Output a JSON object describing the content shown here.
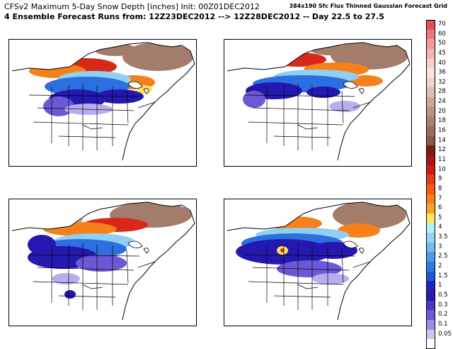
{
  "header": {
    "title": "CFSv2 Maximum 5-Day Snow Depth [inches] Init: 00Z01DEC2012",
    "subtitle": "4 Ensemble Forecast Runs from: 12Z23DEC2012 --> 12Z28DEC2012 -- Day 22.5 to 27.5",
    "grid_note": "384x190 Sfc Flux Thinned Gaussian Forecast Grid"
  },
  "legend": {
    "items": [
      {
        "label": "70",
        "color": "#e44e4e"
      },
      {
        "label": "60",
        "color": "#ef7777"
      },
      {
        "label": "50",
        "color": "#f29a9a"
      },
      {
        "label": "45",
        "color": "#f4b4b4"
      },
      {
        "label": "40",
        "color": "#f7cdcd"
      },
      {
        "label": "36",
        "color": "#f7e6e0"
      },
      {
        "label": "32",
        "color": "#e9d6cf"
      },
      {
        "label": "28",
        "color": "#dcc0b5"
      },
      {
        "label": "24",
        "color": "#cda798"
      },
      {
        "label": "20",
        "color": "#bd9282"
      },
      {
        "label": "18",
        "color": "#ad7f6e"
      },
      {
        "label": "16",
        "color": "#9c6c5b"
      },
      {
        "label": "14",
        "color": "#8a5848"
      },
      {
        "label": "12",
        "color": "#7a1b14"
      },
      {
        "label": "11",
        "color": "#a61614"
      },
      {
        "label": "10",
        "color": "#cd1a16"
      },
      {
        "label": "9",
        "color": "#e43a18"
      },
      {
        "label": "8",
        "color": "#f25d16"
      },
      {
        "label": "7",
        "color": "#f98016"
      },
      {
        "label": "6",
        "color": "#fba326"
      },
      {
        "label": "5",
        "color": "#ffe65a"
      },
      {
        "label": "4",
        "color": "#b5f0fa"
      },
      {
        "label": "3.5",
        "color": "#92d6f6"
      },
      {
        "label": "3",
        "color": "#72bcf1"
      },
      {
        "label": "2.5",
        "color": "#4b9aea"
      },
      {
        "label": "2",
        "color": "#2d78e1"
      },
      {
        "label": "1.5",
        "color": "#1d56d6"
      },
      {
        "label": "1",
        "color": "#1a22c8"
      },
      {
        "label": "0.5",
        "color": "#2b18a6"
      },
      {
        "label": "0.3",
        "color": "#4a38c6"
      },
      {
        "label": "0.2",
        "color": "#6a5cd6"
      },
      {
        "label": "0.1",
        "color": "#9a8ee6"
      },
      {
        "label": "0.05",
        "color": "#cdc6f4"
      },
      {
        "label": "",
        "color": "#ffffff"
      }
    ]
  },
  "colors": {
    "ocean": "#ffffff",
    "deep_snow": "#a47c6c",
    "light_deep": "#c9a697",
    "red": "#d8281a",
    "orange": "#f7801a",
    "yellow": "#ffe45a",
    "cyan": "#8fd0f4",
    "blue": "#2c6fe0",
    "navy": "#2418b0",
    "purple": "#6a58d4",
    "lavender": "#b8aeee"
  }
}
